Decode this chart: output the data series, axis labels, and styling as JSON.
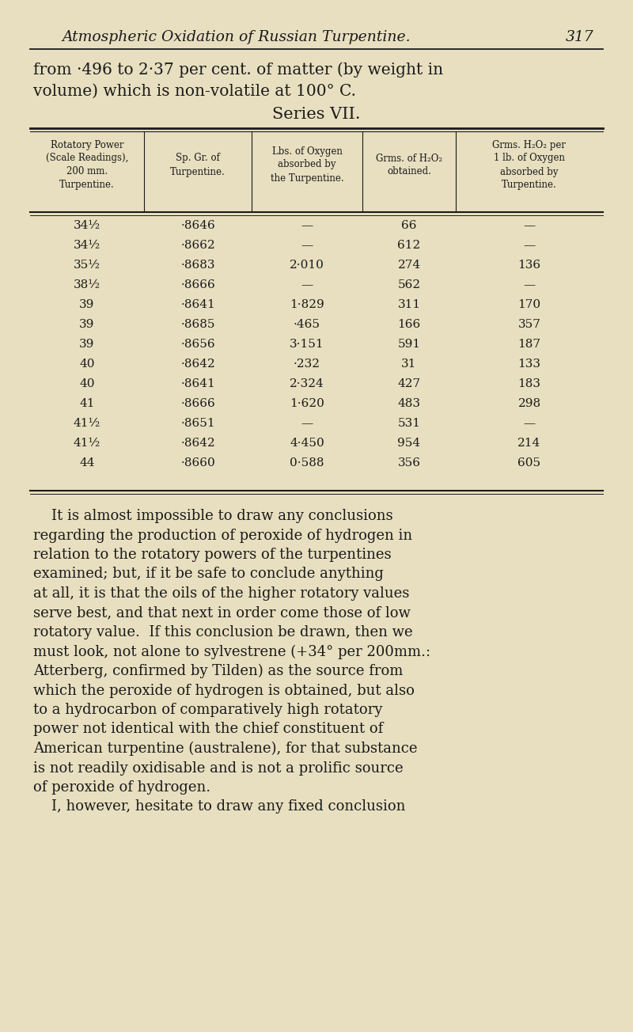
{
  "bg_color": "#e8dfc0",
  "page_title_italic": "Atmospheric Oxidation of Russian Turpentine.",
  "page_number": "317",
  "intro_text_line1": "from ·496 to 2·37 per cent. of matter (by weight in",
  "intro_text_line2": "volume) which is non-volatile at 100° C.",
  "series_title": "Series VII.",
  "table_rows": [
    [
      "34½",
      "·8646",
      "—",
      "66",
      "—"
    ],
    [
      "34½",
      "·8662",
      "—",
      "612",
      "—"
    ],
    [
      "35½",
      "·8683",
      "2·010",
      "274",
      "136"
    ],
    [
      "38½",
      "·8666",
      "—",
      "562",
      "—"
    ],
    [
      "39",
      "·8641",
      "1·829",
      "311",
      "170"
    ],
    [
      "39",
      "·8685",
      "·465",
      "166",
      "357"
    ],
    [
      "39",
      "·8656",
      "3·151",
      "591",
      "187"
    ],
    [
      "40",
      "·8642",
      "·232",
      "31",
      "133"
    ],
    [
      "40",
      "·8641",
      "2·324",
      "427",
      "183"
    ],
    [
      "41",
      "·8666",
      "1·620",
      "483",
      "298"
    ],
    [
      "41½",
      "·8651",
      "—",
      "531",
      "—"
    ],
    [
      "41½",
      "·8642",
      "4·450",
      "954",
      "214"
    ],
    [
      "44",
      "·8660",
      "0·588",
      "356",
      "605"
    ]
  ],
  "body_lines": [
    "    It is almost impossible to draw any conclusions",
    "regarding the production of peroxide of hydrogen in",
    "relation to the rotatory powers of the turpentines",
    "examined; but, if it be safe to conclude anything",
    "at all, it is that the oils of the higher rotatory values",
    "serve best, and that next in order come those of low",
    "rotatory value.  If this conclusion be drawn, then we",
    "must look, not alone to sylvestrene (+34° per 200mm.:",
    "Atterberg, confirmed by Tilden) as the source from",
    "which the peroxide of hydrogen is obtained, but also",
    "to a hydrocarbon of comparatively high rotatory",
    "power not identical with the chief constituent of",
    "American turpentine (australene), for that substance",
    "is not readily oxidisable and is not a prolific source",
    "of peroxide of hydrogen.",
    "    I, however, hesitate to draw any fixed conclusion"
  ]
}
